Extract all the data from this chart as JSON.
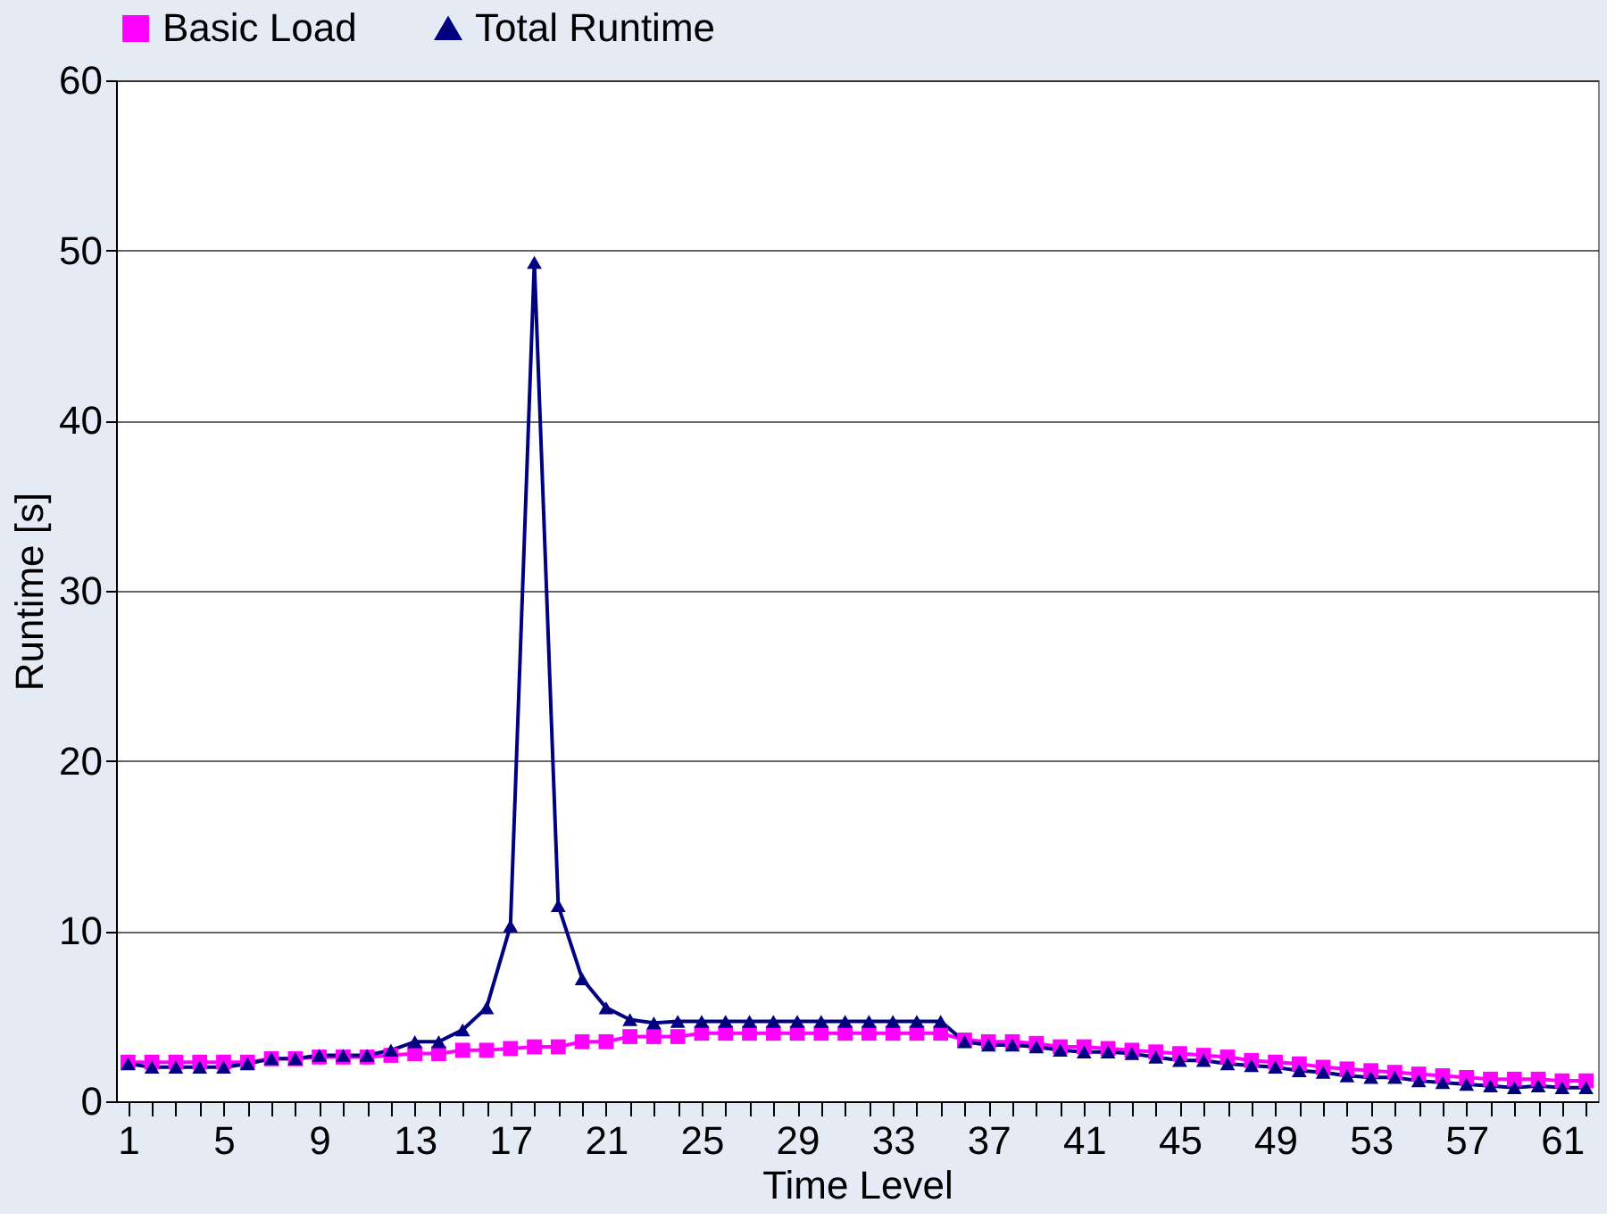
{
  "chart_data": {
    "type": "line",
    "xlabel": "Time Level",
    "ylabel": "Runtime [s]",
    "categories": [
      "1",
      null,
      null,
      null,
      "5",
      null,
      null,
      null,
      "9",
      null,
      null,
      null,
      "13",
      null,
      null,
      null,
      "17",
      null,
      null,
      null,
      "21",
      null,
      null,
      null,
      "25",
      null,
      null,
      null,
      "29",
      null,
      null,
      null,
      "33",
      null,
      null,
      null,
      "37",
      null,
      null,
      null,
      "41",
      null,
      null,
      null,
      "45",
      null,
      null,
      null,
      "49",
      null,
      null,
      null,
      "53",
      null,
      null,
      null,
      "57",
      null,
      null,
      null,
      "61",
      null
    ],
    "series": [
      {
        "name": "Basic Load",
        "color": "#ff00ff",
        "marker": "square",
        "values": [
          2.3,
          2.3,
          2.3,
          2.3,
          2.3,
          2.3,
          2.5,
          2.5,
          2.6,
          2.6,
          2.6,
          2.7,
          2.8,
          2.8,
          3.0,
          3.0,
          3.1,
          3.2,
          3.2,
          3.5,
          3.5,
          3.8,
          3.8,
          3.8,
          4.0,
          4.0,
          4.0,
          4.0,
          4.0,
          4.0,
          4.0,
          4.0,
          4.0,
          4.0,
          4.0,
          3.6,
          3.5,
          3.5,
          3.4,
          3.2,
          3.2,
          3.1,
          3.0,
          2.9,
          2.8,
          2.7,
          2.6,
          2.4,
          2.3,
          2.2,
          2.0,
          1.9,
          1.8,
          1.7,
          1.6,
          1.5,
          1.4,
          1.3,
          1.3,
          1.3,
          1.2,
          1.2
        ]
      },
      {
        "name": "Total Runtime",
        "color": "#000080",
        "marker": "triangle",
        "values": [
          2.2,
          2.0,
          2.0,
          2.0,
          2.0,
          2.2,
          2.5,
          2.5,
          2.7,
          2.7,
          2.7,
          3.0,
          3.5,
          3.5,
          4.2,
          5.5,
          10.3,
          49.3,
          11.5,
          7.2,
          5.5,
          4.8,
          4.6,
          4.7,
          4.7,
          4.7,
          4.7,
          4.7,
          4.7,
          4.7,
          4.7,
          4.7,
          4.7,
          4.7,
          4.7,
          3.5,
          3.3,
          3.3,
          3.2,
          3.0,
          2.9,
          2.9,
          2.8,
          2.6,
          2.4,
          2.4,
          2.2,
          2.1,
          2.0,
          1.8,
          1.7,
          1.5,
          1.4,
          1.4,
          1.2,
          1.1,
          1.0,
          0.9,
          0.8,
          0.9,
          0.8,
          0.8
        ]
      }
    ],
    "ylim": [
      0,
      60
    ],
    "yticks": [
      0,
      10,
      20,
      30,
      40,
      50,
      60
    ],
    "grid": "y",
    "legend": "top",
    "line_style": "solid"
  }
}
